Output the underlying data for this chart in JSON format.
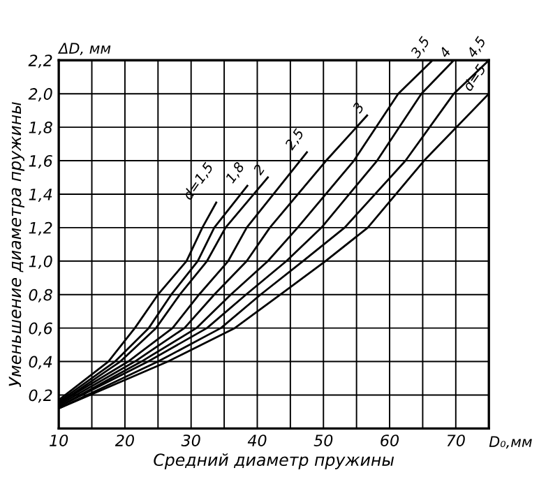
{
  "chart_data": {
    "type": "line",
    "xlabel": "Средний диаметр пружины",
    "ylabel": "Уменьшение диаметра пружины",
    "annotations": [
      "ΔD, мм",
      "D₀,мм"
    ],
    "xlim": [
      10,
      75
    ],
    "ylim": [
      0,
      2.2
    ],
    "xticks": [
      10,
      {
        "value": 15,
        "label": null
      },
      20,
      {
        "value": 25,
        "label": null
      },
      30,
      {
        "value": 35,
        "label": null
      },
      40,
      {
        "value": 45,
        "label": null
      },
      50,
      {
        "value": 55,
        "label": null
      },
      60,
      {
        "value": 65,
        "label": null
      },
      70,
      {
        "value": 75,
        "label": null
      }
    ],
    "yticks": [
      {
        "value": 0,
        "label": null
      },
      {
        "value": 0.2,
        "label": "0,2"
      },
      {
        "value": 0.4,
        "label": "0,4"
      },
      {
        "value": 0.6,
        "label": "0,6"
      },
      {
        "value": 0.8,
        "label": "0,8"
      },
      {
        "value": 1.0,
        "label": "1,0"
      },
      {
        "value": 1.2,
        "label": "1,2"
      },
      {
        "value": 1.4,
        "label": "1,4"
      },
      {
        "value": 1.6,
        "label": "1,6"
      },
      {
        "value": 1.8,
        "label": "1,8"
      },
      {
        "value": 2.0,
        "label": "2,0"
      },
      {
        "value": 2.2,
        "label": "2,2"
      }
    ],
    "grid": true,
    "marker": "none",
    "line_style": "solid",
    "series": [
      {
        "name": "d=1,5",
        "color": "#000000",
        "x": [
          10,
          17.5,
          21.5,
          25.0,
          29.3,
          31.7,
          33.8
        ],
        "values": [
          0.17,
          0.4,
          0.6,
          0.8,
          1.0,
          1.2,
          1.35
        ]
      },
      {
        "name": "1,8",
        "color": "#000000",
        "x": [
          10,
          18.5,
          23.6,
          27.0,
          31.0,
          33.5,
          38.5
        ],
        "values": [
          0.16,
          0.4,
          0.6,
          0.8,
          1.0,
          1.2,
          1.45
        ]
      },
      {
        "name": "2",
        "color": "#000000",
        "x": [
          10,
          19.3,
          24.7,
          28.3,
          32.4,
          35.2,
          41.6
        ],
        "values": [
          0.15,
          0.4,
          0.6,
          0.8,
          1.0,
          1.2,
          1.5
        ]
      },
      {
        "name": "2,5",
        "color": "#000000",
        "x": [
          10,
          20.5,
          27.2,
          31.2,
          35.6,
          38.4,
          47.5
        ],
        "values": [
          0.15,
          0.4,
          0.6,
          0.8,
          1.0,
          1.2,
          1.65
        ]
      },
      {
        "name": "3",
        "color": "#000000",
        "x": [
          10,
          21.5,
          29.0,
          33.5,
          38.4,
          41.9,
          50.4,
          56.6
        ],
        "values": [
          0.14,
          0.4,
          0.6,
          0.8,
          1.0,
          1.2,
          1.6,
          1.87
        ]
      },
      {
        "name": "3,5",
        "color": "#000000",
        "x": [
          10,
          22.5,
          30.8,
          36.0,
          41.6,
          46.1,
          54.6,
          61.3,
          66.5
        ],
        "values": [
          0.13,
          0.4,
          0.6,
          0.8,
          1.0,
          1.2,
          1.6,
          2.0,
          2.2
        ]
      },
      {
        "name": "4",
        "color": "#000000",
        "x": [
          10,
          23.5,
          32.4,
          38.3,
          44.4,
          49.7,
          58.1,
          64.8,
          69.7
        ],
        "values": [
          0.13,
          0.4,
          0.6,
          0.8,
          1.0,
          1.2,
          1.6,
          2.0,
          2.2
        ]
      },
      {
        "name": "4,5",
        "color": "#000000",
        "x": [
          10,
          25.0,
          34.5,
          40.5,
          46.9,
          53.2,
          62.4,
          69.7,
          75
        ],
        "values": [
          0.12,
          0.4,
          0.6,
          0.8,
          1.0,
          1.2,
          1.6,
          2.0,
          2.2
        ]
      },
      {
        "name": "d=5",
        "color": "#000000",
        "x": [
          10,
          26.5,
          36.6,
          43.5,
          50.3,
          56.7,
          65.2,
          75
        ],
        "values": [
          0.12,
          0.4,
          0.6,
          0.8,
          1.0,
          1.2,
          1.6,
          2.0
        ]
      }
    ]
  }
}
